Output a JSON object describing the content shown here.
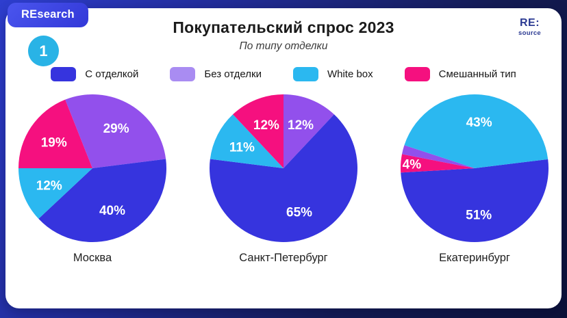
{
  "badge": "REsearch",
  "slide_number": "1",
  "logo": {
    "line1": "RE:",
    "line2": "source"
  },
  "header": {
    "title": "Покупательский спрос 2023",
    "subtitle": "По типу отделки"
  },
  "colors": {
    "finished": "#3634de",
    "unfinished": "#9250ec",
    "whitebox": "#2bb8f0",
    "mixed": "#f5107f",
    "badge_blue": "#3a43e0",
    "circle_cyan": "#29b3e6",
    "logo_navy": "#2b3a92",
    "background_navy": "#141c55"
  },
  "legend": [
    {
      "label": "С отделкой",
      "key": "finished",
      "color": "#3634de"
    },
    {
      "label": "Без отделки",
      "key": "unfinished",
      "color": "#a98cf2"
    },
    {
      "label": "White box",
      "key": "whitebox",
      "color": "#2bb8f0"
    },
    {
      "label": "Смешанный тип",
      "key": "mixed",
      "color": "#f5107f"
    }
  ],
  "chart_data": {
    "type": "pie",
    "title": "Покупательский спрос 2023",
    "subtitle": "По типу отделки",
    "unit": "%",
    "legend_position": "top",
    "categories": [
      "С отделкой",
      "Без отделки",
      "White box",
      "Смешанный тип"
    ],
    "charts": [
      {
        "city": "Москва",
        "start_angle": 270,
        "slices": [
          {
            "category": "Смешанный тип",
            "key": "mixed",
            "value": 19
          },
          {
            "category": "Без отделки",
            "key": "unfinished",
            "value": 29
          },
          {
            "category": "С отделкой",
            "key": "finished",
            "value": 40
          },
          {
            "category": "White box",
            "key": "whitebox",
            "value": 12
          }
        ]
      },
      {
        "city": "Санкт-Петербург",
        "start_angle": 0,
        "slices": [
          {
            "category": "Без отделки",
            "key": "unfinished",
            "value": 12
          },
          {
            "category": "С отделкой",
            "key": "finished",
            "value": 65
          },
          {
            "category": "White box",
            "key": "whitebox",
            "value": 11
          },
          {
            "category": "Смешанный тип",
            "key": "mixed",
            "value": 12
          }
        ]
      },
      {
        "city": "Екатеринбург",
        "start_angle": 83,
        "slices": [
          {
            "category": "С отделкой",
            "key": "finished",
            "value": 51
          },
          {
            "category": "Смешанный тип",
            "key": "mixed",
            "value": 4
          },
          {
            "category": "Без отделки",
            "key": "unfinished",
            "value": 2,
            "label_visible": false
          },
          {
            "category": "White box",
            "key": "whitebox",
            "value": 43
          }
        ]
      }
    ]
  }
}
